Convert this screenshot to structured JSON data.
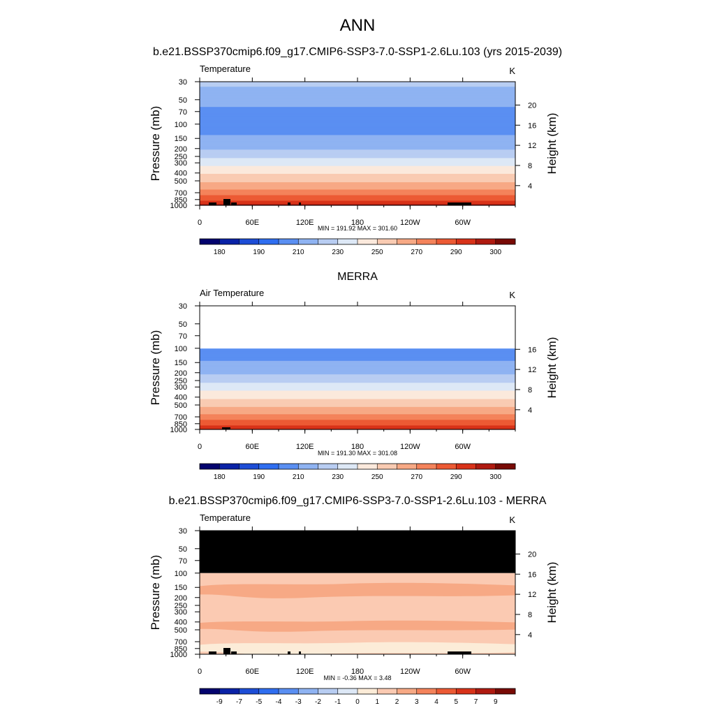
{
  "figure": {
    "title": "ANN"
  },
  "palettes": {
    "abs": [
      "#04046e",
      "#0a22a6",
      "#1d4dd6",
      "#2f6ef0",
      "#5a8ff2",
      "#8fb3f2",
      "#b8cdf2",
      "#dde8f6",
      "#fbe9dc",
      "#f9cbb2",
      "#f7a985",
      "#f4835b",
      "#ec5a34",
      "#d83219",
      "#af1a10",
      "#780a05"
    ],
    "diff": [
      "#04046e",
      "#0a22a6",
      "#1d4dd6",
      "#2f6ef0",
      "#5a8ff2",
      "#8fb3f2",
      "#b8cdf2",
      "#dde8f6",
      "#fcecd8",
      "#fbcab2",
      "#f7a985",
      "#f4835b",
      "#ec5a34",
      "#d83219",
      "#af1a10",
      "#780a05"
    ]
  },
  "panels": [
    {
      "heading": "b.e21.BSSP370cmip6.f09_g17.CMIP6-SSP3-7.0-SSP1-2.6Lu.103 (yrs 2015-2039)",
      "left_label": "Temperature",
      "units": "K",
      "stats": "MIN = 191.92  MAX = 301.60",
      "colorbar_labels": [
        {
          "pos": 1,
          "text": "180"
        },
        {
          "pos": 3,
          "text": "190"
        },
        {
          "pos": 5,
          "text": "210"
        },
        {
          "pos": 7,
          "text": "230"
        },
        {
          "pos": 9,
          "text": "250"
        },
        {
          "pos": 11,
          "text": "270"
        },
        {
          "pos": 13,
          "text": "290"
        },
        {
          "pos": 15,
          "text": "300"
        }
      ],
      "has_height_axis": true,
      "height_ticks": [
        "20",
        "16",
        "12",
        "8",
        "4"
      ]
    },
    {
      "heading": "MERRA",
      "left_label": "Air Temperature",
      "units": "K",
      "stats": "MIN = 191.30  MAX = 301.08",
      "colorbar_labels": [
        {
          "pos": 1,
          "text": "180"
        },
        {
          "pos": 3,
          "text": "190"
        },
        {
          "pos": 5,
          "text": "210"
        },
        {
          "pos": 7,
          "text": "230"
        },
        {
          "pos": 9,
          "text": "250"
        },
        {
          "pos": 11,
          "text": "270"
        },
        {
          "pos": 13,
          "text": "290"
        },
        {
          "pos": 15,
          "text": "300"
        }
      ],
      "has_height_axis": true,
      "height_ticks": [
        "16",
        "12",
        "8",
        "4"
      ]
    },
    {
      "heading": "b.e21.BSSP370cmip6.f09_g17.CMIP6-SSP3-7.0-SSP1-2.6Lu.103 - MERRA",
      "left_label": "Temperature",
      "units": "K",
      "stats": "MIN =  -0.36  MAX =   3.48",
      "colorbar_labels": [
        {
          "pos": 1,
          "text": "-9"
        },
        {
          "pos": 2,
          "text": "-7"
        },
        {
          "pos": 3,
          "text": "-5"
        },
        {
          "pos": 4,
          "text": "-4"
        },
        {
          "pos": 5,
          "text": "-3"
        },
        {
          "pos": 6,
          "text": "-2"
        },
        {
          "pos": 7,
          "text": "-1"
        },
        {
          "pos": 8,
          "text": "0"
        },
        {
          "pos": 9,
          "text": "1"
        },
        {
          "pos": 10,
          "text": "2"
        },
        {
          "pos": 11,
          "text": "3"
        },
        {
          "pos": 12,
          "text": "4"
        },
        {
          "pos": 13,
          "text": "5"
        },
        {
          "pos": 14,
          "text": "7"
        },
        {
          "pos": 15,
          "text": "9"
        }
      ],
      "has_height_axis": true,
      "height_ticks": [
        "20",
        "16",
        "12",
        "8",
        "4"
      ]
    }
  ],
  "chart_data": [
    {
      "type": "heatmap",
      "title": "b.e21.BSSP370cmip6.f09_g17.CMIP6-SSP3-7.0-SSP1-2.6Lu.103 (yrs 2015-2039)",
      "variable": "Temperature",
      "units": "K",
      "xlabel": "",
      "ylabel": "Pressure (mb)",
      "y2label": "Height (km)",
      "x_ticks": [
        "0",
        "60E",
        "120E",
        "180",
        "120W",
        "60W"
      ],
      "y_ticks": [
        "30",
        "50",
        "70",
        "100",
        "150",
        "200",
        "250",
        "300",
        "400",
        "500",
        "700",
        "850",
        "1000"
      ],
      "y2_ticks": [
        "20",
        "16",
        "12",
        "8",
        "4"
      ],
      "min": 191.92,
      "max": 301.6,
      "contour_levels": [
        180,
        185,
        190,
        200,
        210,
        220,
        230,
        240,
        250,
        260,
        270,
        280,
        290,
        295,
        300
      ],
      "profile_hPa": [
        {
          "p": 30,
          "T": 222
        },
        {
          "p": 40,
          "T": 218
        },
        {
          "p": 50,
          "T": 213
        },
        {
          "p": 70,
          "T": 208
        },
        {
          "p": 100,
          "T": 205
        },
        {
          "p": 120,
          "T": 207
        },
        {
          "p": 150,
          "T": 212
        },
        {
          "p": 200,
          "T": 219
        },
        {
          "p": 250,
          "T": 228
        },
        {
          "p": 300,
          "T": 236
        },
        {
          "p": 400,
          "T": 249
        },
        {
          "p": 500,
          "T": 258
        },
        {
          "p": 600,
          "T": 267
        },
        {
          "p": 700,
          "T": 275
        },
        {
          "p": 850,
          "T": 288
        },
        {
          "p": 925,
          "T": 293
        },
        {
          "p": 1000,
          "T": 297
        }
      ]
    },
    {
      "type": "heatmap",
      "title": "MERRA",
      "variable": "Air Temperature",
      "units": "K",
      "xlabel": "",
      "ylabel": "Pressure (mb)",
      "y2label": "Height (km)",
      "x_ticks": [
        "0",
        "60E",
        "120E",
        "180",
        "120W",
        "60W"
      ],
      "y_ticks": [
        "30",
        "50",
        "70",
        "100",
        "150",
        "200",
        "250",
        "300",
        "400",
        "500",
        "700",
        "850",
        "1000"
      ],
      "y2_ticks": [
        "16",
        "12",
        "8",
        "4"
      ],
      "min": 191.3,
      "max": 301.08,
      "data_top_hPa": 100,
      "contour_levels": [
        180,
        185,
        190,
        200,
        210,
        220,
        230,
        240,
        250,
        260,
        270,
        280,
        290,
        295,
        300
      ],
      "profile_hPa": [
        {
          "p": 100,
          "T": 203
        },
        {
          "p": 120,
          "T": 206
        },
        {
          "p": 150,
          "T": 211
        },
        {
          "p": 200,
          "T": 218
        },
        {
          "p": 250,
          "T": 227
        },
        {
          "p": 300,
          "T": 235
        },
        {
          "p": 400,
          "T": 248
        },
        {
          "p": 500,
          "T": 257
        },
        {
          "p": 600,
          "T": 266
        },
        {
          "p": 700,
          "T": 274
        },
        {
          "p": 850,
          "T": 287
        },
        {
          "p": 925,
          "T": 292
        },
        {
          "p": 1000,
          "T": 296
        }
      ]
    },
    {
      "type": "heatmap",
      "title": "b.e21.BSSP370cmip6.f09_g17.CMIP6-SSP3-7.0-SSP1-2.6Lu.103 - MERRA",
      "variable": "Temperature",
      "units": "K",
      "xlabel": "",
      "ylabel": "Pressure (mb)",
      "y2label": "Height (km)",
      "x_ticks": [
        "0",
        "60E",
        "120E",
        "180",
        "120W",
        "60W"
      ],
      "y_ticks": [
        "30",
        "50",
        "70",
        "100",
        "150",
        "200",
        "250",
        "300",
        "400",
        "500",
        "700",
        "850",
        "1000"
      ],
      "y2_ticks": [
        "20",
        "16",
        "12",
        "8",
        "4"
      ],
      "min": -0.36,
      "max": 3.48,
      "missing_above_hPa": 100,
      "contour_levels": [
        -9,
        -7,
        -5,
        -4,
        -3,
        -2,
        -1,
        0,
        1,
        2,
        3,
        4,
        5,
        7,
        9
      ],
      "regions": [
        {
          "p_range": [
            100,
            1000
          ],
          "value_range": [
            1,
            2
          ],
          "description": "background"
        },
        {
          "p_range": [
            130,
            200
          ],
          "value_range": [
            2,
            3
          ],
          "description": "upper band"
        },
        {
          "p_range": [
            380,
            520
          ],
          "value_range": [
            2,
            3
          ],
          "description": "mid band"
        },
        {
          "p_range": [
            700,
            1000
          ],
          "value_range": [
            0,
            1
          ],
          "description": "near surface"
        }
      ]
    }
  ]
}
